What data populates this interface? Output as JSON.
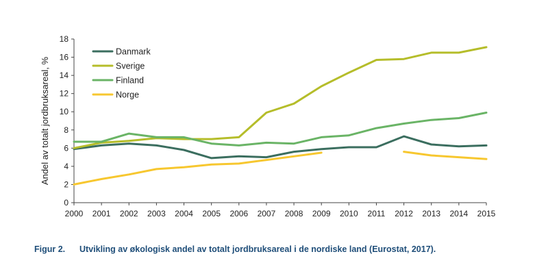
{
  "chart_data": {
    "type": "line",
    "x": [
      2000,
      2001,
      2002,
      2003,
      2004,
      2005,
      2006,
      2007,
      2008,
      2009,
      2010,
      2011,
      2012,
      2013,
      2014,
      2015
    ],
    "series": [
      {
        "name": "Danmark",
        "color": "#3b6e5f",
        "values": [
          5.9,
          6.3,
          6.5,
          6.3,
          5.8,
          4.9,
          5.1,
          5.0,
          5.6,
          5.9,
          6.1,
          6.1,
          7.3,
          6.4,
          6.2,
          6.3
        ]
      },
      {
        "name": "Sverige",
        "color": "#b5bd2a",
        "values": [
          6.0,
          6.6,
          6.8,
          7.1,
          7.0,
          7.0,
          7.2,
          9.9,
          10.9,
          12.8,
          14.3,
          15.7,
          15.8,
          16.5,
          16.5,
          17.1
        ]
      },
      {
        "name": "Finland",
        "color": "#6ab466",
        "values": [
          6.7,
          6.7,
          7.6,
          7.2,
          7.2,
          6.5,
          6.3,
          6.6,
          6.5,
          7.2,
          7.4,
          8.2,
          8.7,
          9.1,
          9.3,
          9.9
        ]
      },
      {
        "name": "Norge",
        "color": "#f7c72f",
        "values": [
          2.0,
          2.6,
          3.1,
          3.7,
          3.9,
          4.2,
          4.3,
          4.7,
          5.1,
          5.5,
          null,
          null,
          5.6,
          5.2,
          5.0,
          4.8
        ]
      }
    ],
    "ylabel": "Andel av totalt jordbruksareal, %",
    "ylim": [
      0,
      18
    ],
    "yticks": [
      0,
      2,
      4,
      6,
      8,
      10,
      12,
      14,
      16,
      18
    ],
    "xlim": [
      2000,
      2015
    ],
    "grid": false,
    "legend": "top-left"
  },
  "caption": {
    "label": "Figur 2.",
    "text": "Utvikling av økologisk andel av totalt jordbruksareal i de nordiske land (Eurostat, 2017)."
  }
}
